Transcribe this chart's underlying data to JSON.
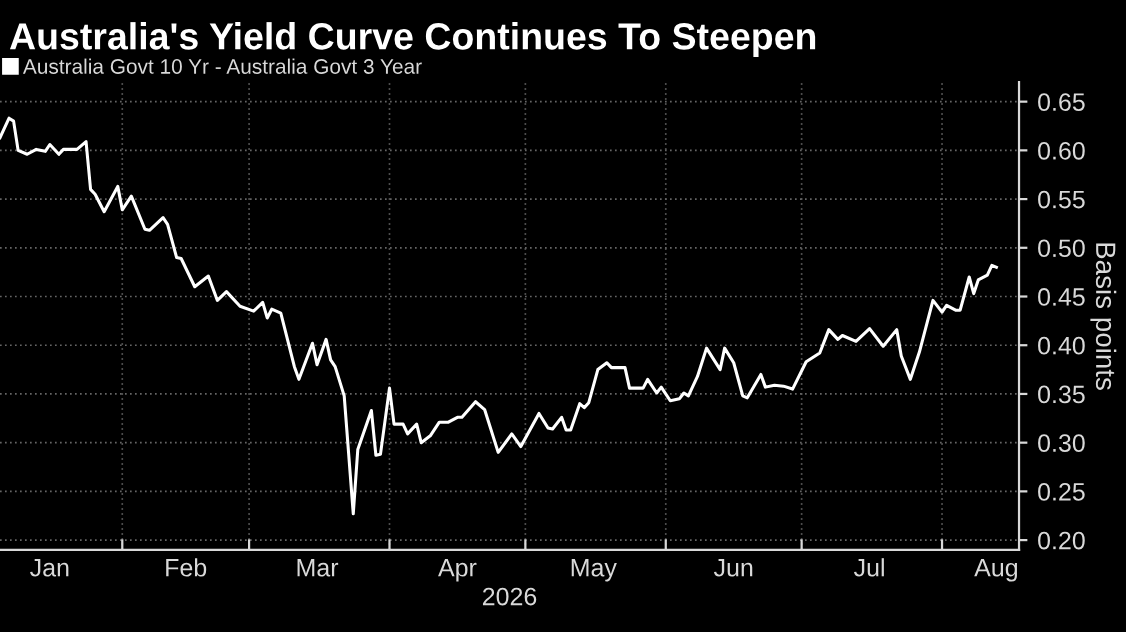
{
  "chart_data": {
    "type": "line",
    "title": "Australia's Yield Curve Continues To Steepen",
    "xlabel": "2026",
    "ylabel": "Basis points",
    "legend": "top left",
    "grid": true,
    "xlim": [
      "2026-01-05",
      "2026-08-18"
    ],
    "xticks": [
      {
        "value": "2026-01-16",
        "label": "Jan"
      },
      {
        "value": "2026-02-01",
        "label": null
      },
      {
        "value": "2026-02-15",
        "label": "Feb"
      },
      {
        "value": "2026-03-01",
        "label": null
      },
      {
        "value": "2026-03-16",
        "label": "Mar"
      },
      {
        "value": "2026-04-01",
        "label": null
      },
      {
        "value": "2026-04-16",
        "label": "Apr"
      },
      {
        "value": "2026-05-01",
        "label": null
      },
      {
        "value": "2026-05-16",
        "label": "May"
      },
      {
        "value": "2026-06-01",
        "label": null
      },
      {
        "value": "2026-06-16",
        "label": "Jun"
      },
      {
        "value": "2026-07-01",
        "label": null
      },
      {
        "value": "2026-07-16",
        "label": "Jul"
      },
      {
        "value": "2026-08-01",
        "label": null
      },
      {
        "value": "2026-08-13",
        "label": "Aug"
      }
    ],
    "ylim": [
      0.19,
      0.67
    ],
    "yticks": [
      {
        "value": 0.2,
        "label": "0.20"
      },
      {
        "value": 0.25,
        "label": "0.25"
      },
      {
        "value": 0.3,
        "label": "0.30"
      },
      {
        "value": 0.35,
        "label": "0.35"
      },
      {
        "value": 0.4,
        "label": "0.40"
      },
      {
        "value": 0.45,
        "label": "0.45"
      },
      {
        "value": 0.5,
        "label": "0.50"
      },
      {
        "value": 0.55,
        "label": "0.55"
      },
      {
        "value": 0.6,
        "label": "0.60"
      },
      {
        "value": 0.65,
        "label": "0.65"
      }
    ],
    "x": [
      "2026-01-05",
      "2026-01-07",
      "2026-01-08",
      "2026-01-09",
      "2026-01-11",
      "2026-01-13",
      "2026-01-15",
      "2026-01-16",
      "2026-01-18",
      "2026-01-19",
      "2026-01-22",
      "2026-01-24",
      "2026-01-25",
      "2026-01-26",
      "2026-01-28",
      "2026-01-31",
      "2026-02-01",
      "2026-02-03",
      "2026-02-06",
      "2026-02-07",
      "2026-02-10",
      "2026-02-11",
      "2026-02-13",
      "2026-02-14",
      "2026-02-17",
      "2026-02-20",
      "2026-02-22",
      "2026-02-24",
      "2026-02-27",
      "2026-03-02",
      "2026-03-04",
      "2026-03-05",
      "2026-03-06",
      "2026-03-08",
      "2026-03-11",
      "2026-03-12",
      "2026-03-15",
      "2026-03-16",
      "2026-03-18",
      "2026-03-19",
      "2026-03-20",
      "2026-03-22",
      "2026-03-24",
      "2026-03-25",
      "2026-03-28",
      "2026-03-29",
      "2026-03-30",
      "2026-04-01",
      "2026-04-02",
      "2026-04-04",
      "2026-04-05",
      "2026-04-07",
      "2026-04-08",
      "2026-04-10",
      "2026-04-12",
      "2026-04-14",
      "2026-04-16",
      "2026-04-17",
      "2026-04-20",
      "2026-04-22",
      "2026-04-25",
      "2026-04-28",
      "2026-04-30",
      "2026-05-04",
      "2026-05-06",
      "2026-05-07",
      "2026-05-09",
      "2026-05-10",
      "2026-05-11",
      "2026-05-13",
      "2026-05-14",
      "2026-05-15",
      "2026-05-17",
      "2026-05-19",
      "2026-05-20",
      "2026-05-23",
      "2026-05-24",
      "2026-05-27",
      "2026-05-28",
      "2026-05-30",
      "2026-05-31",
      "2026-06-02",
      "2026-06-04",
      "2026-06-05",
      "2026-06-06",
      "2026-06-08",
      "2026-06-10",
      "2026-06-13",
      "2026-06-14",
      "2026-06-16",
      "2026-06-18",
      "2026-06-19",
      "2026-06-22",
      "2026-06-23",
      "2026-06-25",
      "2026-06-27",
      "2026-06-29",
      "2026-07-02",
      "2026-07-05",
      "2026-07-07",
      "2026-07-09",
      "2026-07-10",
      "2026-07-13",
      "2026-07-16",
      "2026-07-19",
      "2026-07-22",
      "2026-07-23",
      "2026-07-25",
      "2026-07-27",
      "2026-07-30",
      "2026-08-01",
      "2026-08-02",
      "2026-08-04",
      "2026-08-05",
      "2026-08-07",
      "2026-08-08",
      "2026-08-09",
      "2026-08-11",
      "2026-08-12",
      "2026-08-13"
    ],
    "series": [
      {
        "name": "Australia Govt 10 Yr - Australia Govt 3 Year",
        "color": "#ffffff",
        "values": [
          0.613,
          0.633,
          0.63,
          0.6,
          0.596,
          0.601,
          0.599,
          0.606,
          0.596,
          0.601,
          0.601,
          0.609,
          0.56,
          0.555,
          0.537,
          0.563,
          0.539,
          0.553,
          0.519,
          0.518,
          0.531,
          0.524,
          0.49,
          0.489,
          0.46,
          0.471,
          0.446,
          0.455,
          0.44,
          0.435,
          0.444,
          0.428,
          0.437,
          0.433,
          0.378,
          0.365,
          0.402,
          0.38,
          0.406,
          0.385,
          0.378,
          0.348,
          0.227,
          0.293,
          0.333,
          0.287,
          0.288,
          0.356,
          0.319,
          0.319,
          0.309,
          0.319,
          0.3,
          0.307,
          0.321,
          0.321,
          0.326,
          0.326,
          0.342,
          0.334,
          0.29,
          0.309,
          0.296,
          0.33,
          0.315,
          0.314,
          0.326,
          0.313,
          0.313,
          0.34,
          0.336,
          0.341,
          0.375,
          0.382,
          0.377,
          0.377,
          0.356,
          0.356,
          0.365,
          0.351,
          0.357,
          0.343,
          0.345,
          0.351,
          0.348,
          0.368,
          0.397,
          0.375,
          0.397,
          0.382,
          0.348,
          0.346,
          0.37,
          0.357,
          0.359,
          0.358,
          0.355,
          0.383,
          0.392,
          0.416,
          0.406,
          0.41,
          0.404,
          0.417,
          0.399,
          0.416,
          0.389,
          0.365,
          0.393,
          0.446,
          0.434,
          0.441,
          0.436,
          0.436,
          0.47,
          0.453,
          0.467,
          0.472,
          0.482,
          0.48
        ]
      }
    ]
  }
}
